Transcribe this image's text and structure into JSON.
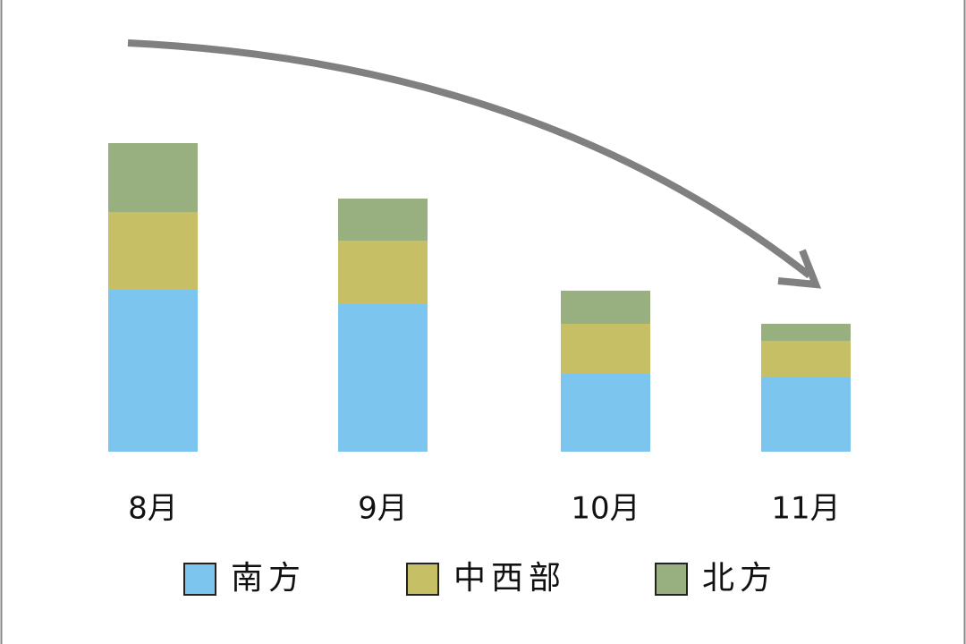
{
  "chart_data": {
    "type": "bar",
    "stacked": true,
    "categories": [
      "8月",
      "9月",
      "10月",
      "11月"
    ],
    "series": [
      {
        "name": "南方",
        "color": "#7bc5ee",
        "values": [
          181,
          165,
          87,
          83
        ]
      },
      {
        "name": "中西部",
        "color": "#c7bf66",
        "values": [
          87,
          71,
          56,
          41
        ]
      },
      {
        "name": "北方",
        "color": "#98b080",
        "values": [
          77,
          47,
          37,
          19
        ]
      }
    ],
    "ylim": [
      0,
      360
    ]
  }
}
